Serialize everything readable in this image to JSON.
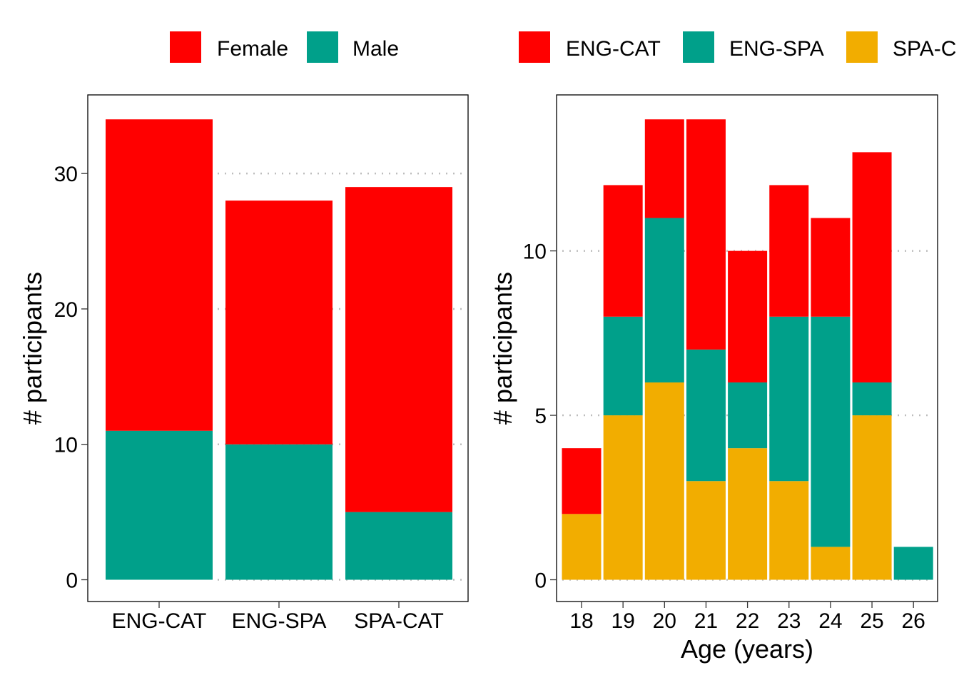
{
  "chart_data": [
    {
      "type": "bar",
      "stacked": true,
      "categories": [
        "ENG-CAT",
        "ENG-SPA",
        "SPA-CAT"
      ],
      "series": [
        {
          "name": "Male",
          "values": [
            11,
            10,
            5
          ],
          "color": "#00A08A"
        },
        {
          "name": "Female",
          "values": [
            23,
            18,
            24
          ],
          "color": "#FF0000"
        }
      ],
      "legend": [
        "Female",
        "Male"
      ],
      "legend_position": "top",
      "title": "",
      "xlabel": "",
      "ylabel": "# participants",
      "yticks": [
        0,
        10,
        20,
        30
      ],
      "ylim": [
        0,
        35.7
      ],
      "grid": "horizontal dotted"
    },
    {
      "type": "bar",
      "stacked": true,
      "categories": [
        "18",
        "19",
        "20",
        "21",
        "22",
        "23",
        "24",
        "25",
        "26"
      ],
      "series": [
        {
          "name": "SPA-CAT",
          "values": [
            2,
            5,
            6,
            3,
            4,
            3,
            1,
            5,
            0
          ],
          "color": "#F2AD00"
        },
        {
          "name": "ENG-SPA",
          "values": [
            0,
            3,
            5,
            4,
            2,
            5,
            7,
            1,
            1
          ],
          "color": "#00A08A"
        },
        {
          "name": "ENG-CAT",
          "values": [
            2,
            4,
            3,
            7,
            4,
            4,
            3,
            7,
            0
          ],
          "color": "#FF0000"
        }
      ],
      "legend": [
        "ENG-CAT",
        "ENG-SPA",
        "SPA-C"
      ],
      "legend_position": "top",
      "title": "",
      "xlabel": "Age (years)",
      "ylabel": "# participants",
      "yticks": [
        0,
        5,
        10
      ],
      "ylim": [
        0,
        14.7
      ],
      "grid": "horizontal dotted"
    }
  ]
}
